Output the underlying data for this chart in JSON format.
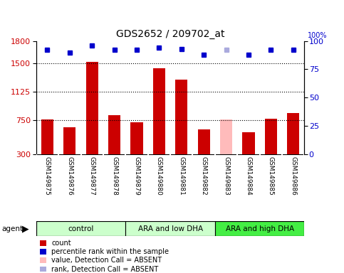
{
  "title": "GDS2652 / 209702_at",
  "categories": [
    "GSM149875",
    "GSM149876",
    "GSM149877",
    "GSM149878",
    "GSM149879",
    "GSM149880",
    "GSM149881",
    "GSM149882",
    "GSM149883",
    "GSM149884",
    "GSM149885",
    "GSM149886"
  ],
  "bar_values": [
    760,
    660,
    1520,
    820,
    720,
    1440,
    1290,
    630,
    760,
    590,
    770,
    850
  ],
  "bar_colors": [
    "#cc0000",
    "#cc0000",
    "#cc0000",
    "#cc0000",
    "#cc0000",
    "#cc0000",
    "#cc0000",
    "#cc0000",
    "#ffbbbb",
    "#cc0000",
    "#cc0000",
    "#cc0000"
  ],
  "dot_values": [
    92,
    90,
    96,
    92,
    92,
    94,
    93,
    88,
    92,
    88,
    92,
    92
  ],
  "dot_colors": [
    "#0000cc",
    "#0000cc",
    "#0000cc",
    "#0000cc",
    "#0000cc",
    "#0000cc",
    "#0000cc",
    "#0000cc",
    "#aaaadd",
    "#0000cc",
    "#0000cc",
    "#0000cc"
  ],
  "ylim_left": [
    300,
    1800
  ],
  "ylim_right": [
    0,
    100
  ],
  "yticks_left": [
    300,
    750,
    1125,
    1500,
    1800
  ],
  "yticks_right": [
    0,
    25,
    50,
    75,
    100
  ],
  "hlines": [
    750,
    1125,
    1500
  ],
  "groups": [
    {
      "label": "control",
      "start": 0,
      "end": 3,
      "color": "#ccffcc"
    },
    {
      "label": "ARA and low DHA",
      "start": 4,
      "end": 7,
      "color": "#ccffcc"
    },
    {
      "label": "ARA and high DHA",
      "start": 8,
      "end": 11,
      "color": "#44ee44"
    }
  ],
  "agent_label": "agent",
  "legend_items": [
    {
      "color": "#cc0000",
      "label": "count"
    },
    {
      "color": "#0000cc",
      "label": "percentile rank within the sample"
    },
    {
      "color": "#ffbbbb",
      "label": "value, Detection Call = ABSENT"
    },
    {
      "color": "#aaaadd",
      "label": "rank, Detection Call = ABSENT"
    }
  ],
  "background_color": "#ffffff",
  "plot_bg_color": "#ffffff",
  "cell_bg_color": "#d3d3d3",
  "title_fontsize": 10,
  "axis_color_left": "#cc0000",
  "axis_color_right": "#0000cc",
  "bar_width": 0.55
}
